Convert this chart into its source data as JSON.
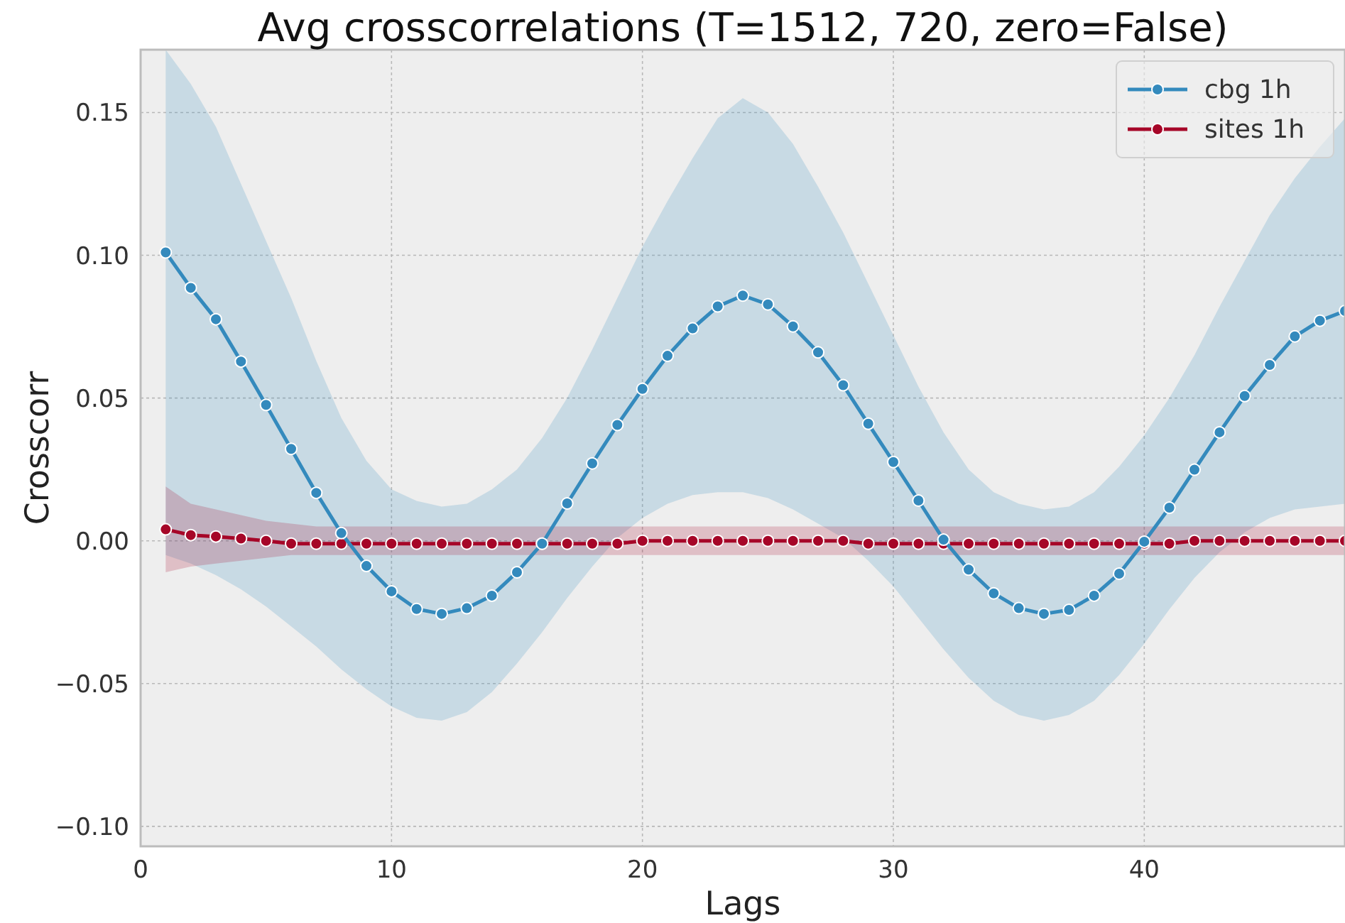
{
  "chart_data": {
    "type": "line",
    "title": "Avg crosscorrelations (T=1512, 720, zero=False)",
    "xlabel": "Lags",
    "ylabel": "Crosscorr",
    "x": [
      1,
      2,
      3,
      4,
      5,
      6,
      7,
      8,
      9,
      10,
      11,
      12,
      13,
      14,
      15,
      16,
      17,
      18,
      19,
      20,
      21,
      22,
      23,
      24,
      25,
      26,
      27,
      28,
      29,
      30,
      31,
      32,
      33,
      34,
      35,
      36,
      37,
      38,
      39,
      40,
      41,
      42,
      43,
      44,
      45,
      46,
      47,
      48
    ],
    "xlim": [
      0,
      48
    ],
    "xticks": [
      0,
      10,
      20,
      30,
      40
    ],
    "ylim": [
      -0.107,
      0.172
    ],
    "yticks": [
      {
        "value": -0.1,
        "label": "−0.10"
      },
      {
        "value": -0.05,
        "label": "−0.05"
      },
      {
        "value": 0,
        "label": "0.00"
      },
      {
        "value": 0.05,
        "label": "0.05"
      },
      {
        "value": 0.1,
        "label": "0.10"
      },
      {
        "value": 0.15,
        "label": "0.15"
      }
    ],
    "grid": true,
    "legend": "top right",
    "marker": "circle",
    "line_style": "solid",
    "series": [
      {
        "name": "cbg 1h",
        "color": "#348abd",
        "values": [
          0.101,
          0.0886,
          0.0776,
          0.0628,
          0.0476,
          0.0322,
          0.0168,
          0.0027,
          -0.0088,
          -0.0177,
          -0.0239,
          -0.0256,
          -0.0236,
          -0.0192,
          -0.011,
          -0.001,
          0.0131,
          0.0271,
          0.0406,
          0.0532,
          0.0648,
          0.0744,
          0.0821,
          0.0859,
          0.0828,
          0.0751,
          0.066,
          0.0545,
          0.041,
          0.0276,
          0.0141,
          0.0004,
          -0.0101,
          -0.0184,
          -0.0236,
          -0.0256,
          -0.0242,
          -0.0192,
          -0.0115,
          -0.0003,
          0.0116,
          0.0249,
          0.038,
          0.0507,
          0.0616,
          0.0716,
          0.0771,
          0.0805
        ],
        "upper": [
          0.172,
          0.16,
          0.145,
          0.125,
          0.105,
          0.085,
          0.063,
          0.043,
          0.028,
          0.018,
          0.014,
          0.012,
          0.013,
          0.018,
          0.025,
          0.036,
          0.05,
          0.067,
          0.085,
          0.103,
          0.119,
          0.134,
          0.148,
          0.155,
          0.15,
          0.139,
          0.124,
          0.108,
          0.09,
          0.072,
          0.054,
          0.038,
          0.025,
          0.017,
          0.013,
          0.011,
          0.012,
          0.017,
          0.026,
          0.037,
          0.05,
          0.065,
          0.082,
          0.098,
          0.114,
          0.127,
          0.138,
          0.148
        ],
        "lower": [
          -0.005,
          -0.008,
          -0.012,
          -0.017,
          -0.023,
          -0.03,
          -0.037,
          -0.045,
          -0.052,
          -0.058,
          -0.062,
          -0.063,
          -0.06,
          -0.053,
          -0.043,
          -0.032,
          -0.02,
          -0.009,
          0.001,
          0.008,
          0.013,
          0.016,
          0.017,
          0.017,
          0.015,
          0.011,
          0.006,
          0.001,
          -0.007,
          -0.016,
          -0.027,
          -0.038,
          -0.048,
          -0.056,
          -0.061,
          -0.063,
          -0.061,
          -0.056,
          -0.047,
          -0.036,
          -0.024,
          -0.013,
          -0.004,
          0.003,
          0.008,
          0.011,
          0.012,
          0.013
        ]
      },
      {
        "name": "sites 1h",
        "color": "#a60628",
        "values": [
          0.004,
          0.002,
          0.0015,
          0.0008,
          0,
          -0.001,
          -0.001,
          -0.001,
          -0.001,
          -0.001,
          -0.001,
          -0.001,
          -0.001,
          -0.001,
          -0.001,
          -0.001,
          -0.001,
          -0.001,
          -0.001,
          0,
          0,
          0,
          0,
          0,
          0,
          0,
          0,
          0,
          -0.001,
          -0.001,
          -0.001,
          -0.001,
          -0.001,
          -0.001,
          -0.001,
          -0.001,
          -0.001,
          -0.001,
          -0.001,
          -0.001,
          -0.001,
          0,
          0,
          0,
          0,
          0,
          0,
          0
        ],
        "upper": [
          0.019,
          0.013,
          0.011,
          0.009,
          0.007,
          0.006,
          0.005,
          0.005,
          0.005,
          0.005,
          0.005,
          0.005,
          0.005,
          0.005,
          0.005,
          0.005,
          0.005,
          0.005,
          0.005,
          0.005,
          0.005,
          0.005,
          0.005,
          0.005,
          0.005,
          0.005,
          0.005,
          0.005,
          0.005,
          0.005,
          0.005,
          0.005,
          0.005,
          0.005,
          0.005,
          0.005,
          0.005,
          0.005,
          0.005,
          0.005,
          0.005,
          0.005,
          0.005,
          0.005,
          0.005,
          0.005,
          0.005,
          0.005
        ],
        "lower": [
          -0.011,
          -0.009,
          -0.008,
          -0.007,
          -0.006,
          -0.005,
          -0.005,
          -0.005,
          -0.005,
          -0.005,
          -0.005,
          -0.005,
          -0.005,
          -0.005,
          -0.005,
          -0.005,
          -0.005,
          -0.005,
          -0.005,
          -0.005,
          -0.005,
          -0.005,
          -0.005,
          -0.005,
          -0.005,
          -0.005,
          -0.005,
          -0.005,
          -0.005,
          -0.005,
          -0.005,
          -0.005,
          -0.005,
          -0.005,
          -0.005,
          -0.005,
          -0.005,
          -0.005,
          -0.005,
          -0.005,
          -0.005,
          -0.005,
          -0.005,
          -0.005,
          -0.005,
          -0.005,
          -0.005,
          -0.005
        ]
      }
    ]
  }
}
